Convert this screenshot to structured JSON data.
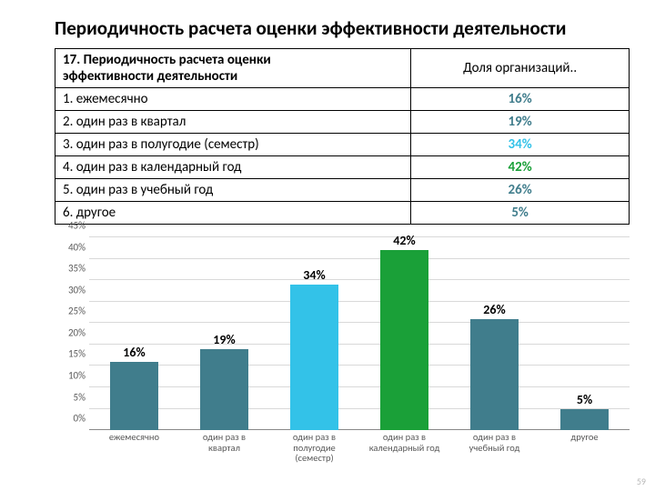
{
  "title": "Периодичность расчета оценки эффективности деятельности",
  "table": {
    "head_left": "17. Периодичность расчета оценки\nэффективности деятельности",
    "head_right": "Доля организаций..",
    "rows": [
      {
        "label": "1. ежемесячно",
        "value": "16%",
        "color": "#407d8c",
        "num": 16
      },
      {
        "label": "2. один раз в квартал",
        "value": "19%",
        "color": "#407d8c",
        "num": 19
      },
      {
        "label": "3. один раз в полугодие (семестр)",
        "value": "34%",
        "color": "#33c2e8",
        "num": 34
      },
      {
        "label": "4. один раз в календарный год",
        "value": "42%",
        "color": "#1aa038",
        "num": 42
      },
      {
        "label": "5. один раз в учебный год",
        "value": "26%",
        "color": "#407d8c",
        "num": 26
      },
      {
        "label": "6. другое",
        "value": "5%",
        "color": "#407d8c",
        "num": 5
      }
    ],
    "value_colors": [
      "#407d8c",
      "#407d8c",
      "#33c2e8",
      "#1aa038",
      "#407d8c",
      "#407d8c"
    ]
  },
  "chart": {
    "type": "bar",
    "ymax": 45,
    "ymin": 0,
    "ystep": 5,
    "yticks": [
      "0%",
      "5%",
      "10%",
      "15%",
      "20%",
      "25%",
      "30%",
      "35%",
      "40%",
      "45%"
    ],
    "xlabels": [
      "ежемесячно",
      "один раз в\nквартал",
      "один раз в\nполугодие\n(семестр)",
      "один раз в\nкалендарный год",
      "один раз в\nучебный год",
      "другое"
    ],
    "grid_color": "#d9d9d9",
    "axis_color": "#888888",
    "label_fontsize": 11,
    "value_fontsize": 14
  },
  "page_number": "59"
}
